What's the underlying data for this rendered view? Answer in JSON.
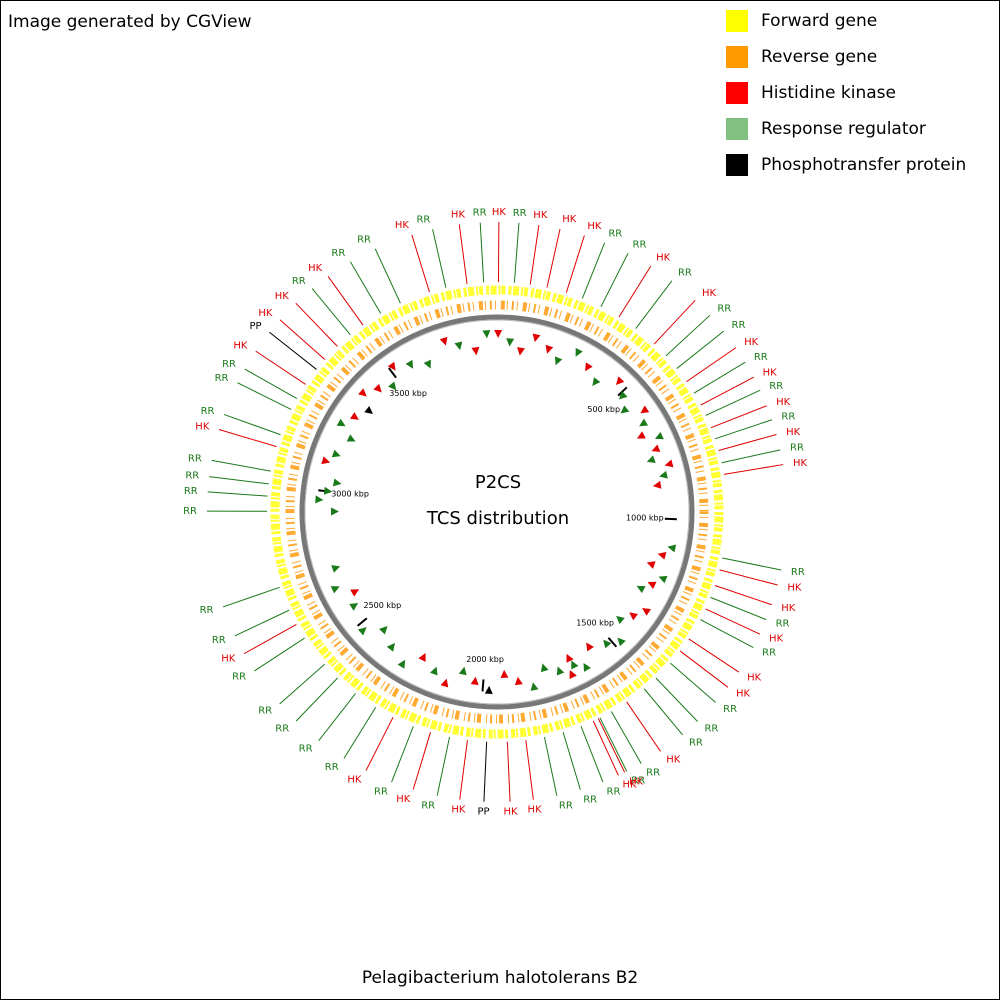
{
  "header": {
    "credit": "Image generated by CGView"
  },
  "legend": {
    "items": [
      {
        "label": "Forward gene",
        "color": "#ffff00"
      },
      {
        "label": "Reverse gene",
        "color": "#ff9900"
      },
      {
        "label": "Histidine kinase",
        "color": "#ff0000"
      },
      {
        "label": "Response regulator",
        "color": "#80c080"
      },
      {
        "label": "Phosphotransfer protein",
        "color": "#000000"
      }
    ]
  },
  "map": {
    "title": "P2CS",
    "subtitle": "TCS distribution",
    "genome_length_kbp": 3900,
    "label_colors": {
      "HK": "#e00000",
      "RR": "#1a7a1a",
      "PP": "#000000"
    },
    "ruler": {
      "ticks": [
        {
          "value": 500,
          "label": "500 kbp"
        },
        {
          "value": 1000,
          "label": "1000 kbp"
        },
        {
          "value": 1500,
          "label": "1500 kbp"
        },
        {
          "value": 2000,
          "label": "2000 kbp"
        },
        {
          "value": 2500,
          "label": "2500 kbp"
        },
        {
          "value": 3000,
          "label": "3000 kbp"
        },
        {
          "value": 3500,
          "label": "3500 kbp"
        }
      ]
    },
    "features": [
      {
        "label": "HK",
        "position": 4
      },
      {
        "label": "RR",
        "position": 47
      },
      {
        "label": "HK",
        "position": 90
      },
      {
        "label": "HK",
        "position": 136
      },
      {
        "label": "HK",
        "position": 190
      },
      {
        "label": "RR",
        "position": 236
      },
      {
        "label": "RR",
        "position": 291
      },
      {
        "label": "HK",
        "position": 347
      },
      {
        "label": "RR",
        "position": 402
      },
      {
        "label": "HK",
        "position": 467
      },
      {
        "label": "RR",
        "position": 512
      },
      {
        "label": "RR",
        "position": 557
      },
      {
        "label": "HK",
        "position": 601
      },
      {
        "label": "RR",
        "position": 638
      },
      {
        "label": "HK",
        "position": 675
      },
      {
        "label": "RR",
        "position": 706
      },
      {
        "label": "HK",
        "position": 742
      },
      {
        "label": "RR",
        "position": 774
      },
      {
        "label": "HK",
        "position": 807
      },
      {
        "label": "RR",
        "position": 841
      },
      {
        "label": "HK",
        "position": 873
      },
      {
        "label": "RR",
        "position": 1100
      },
      {
        "label": "HK",
        "position": 1133
      },
      {
        "label": "HK",
        "position": 1177
      },
      {
        "label": "RR",
        "position": 1211
      },
      {
        "label": "HK",
        "position": 1245
      },
      {
        "label": "RR",
        "position": 1277
      },
      {
        "label": "HK",
        "position": 1338
      },
      {
        "label": "HK",
        "position": 1378
      },
      {
        "label": "RR",
        "position": 1420
      },
      {
        "label": "RR",
        "position": 1476
      },
      {
        "label": "RR",
        "position": 1519
      },
      {
        "label": "HK",
        "position": 1578
      },
      {
        "label": "RR",
        "position": 1627
      },
      {
        "label": "RR",
        "position": 1662
      },
      {
        "label": "HK",
        "position": 1667
      },
      {
        "label": "HK",
        "position": 1682
      },
      {
        "label": "RR",
        "position": 1718
      },
      {
        "label": "RR",
        "position": 1769
      },
      {
        "label": "RR",
        "position": 1821
      },
      {
        "label": "HK",
        "position": 1872
      },
      {
        "label": "HK",
        "position": 1922
      },
      {
        "label": "PP",
        "position": 1978
      },
      {
        "label": "HK",
        "position": 2030
      },
      {
        "label": "RR",
        "position": 2079
      },
      {
        "label": "HK",
        "position": 2132
      },
      {
        "label": "RR",
        "position": 2181
      },
      {
        "label": "HK",
        "position": 2241
      },
      {
        "label": "RR",
        "position": 2295
      },
      {
        "label": "RR",
        "position": 2361
      },
      {
        "label": "RR",
        "position": 2425
      },
      {
        "label": "RR",
        "position": 2476
      },
      {
        "label": "RR",
        "position": 2565
      },
      {
        "label": "HK",
        "position": 2608
      },
      {
        "label": "RR",
        "position": 2651
      },
      {
        "label": "RR",
        "position": 2718
      },
      {
        "label": "RR",
        "position": 2927
      },
      {
        "label": "RR",
        "position": 2968
      },
      {
        "label": "RR",
        "position": 3001
      },
      {
        "label": "RR",
        "position": 3036
      },
      {
        "label": "HK",
        "position": 3104
      },
      {
        "label": "RR",
        "position": 3138
      },
      {
        "label": "RR",
        "position": 3212
      },
      {
        "label": "RR",
        "position": 3245
      },
      {
        "label": "HK",
        "position": 3290
      },
      {
        "label": "PP",
        "position": 3340
      },
      {
        "label": "HK",
        "position": 3375
      },
      {
        "label": "HK",
        "position": 3424
      },
      {
        "label": "RR",
        "position": 3471
      },
      {
        "label": "HK",
        "position": 3514
      },
      {
        "label": "RR",
        "position": 3571
      },
      {
        "label": "RR",
        "position": 3631
      },
      {
        "label": "HK",
        "position": 3715
      },
      {
        "label": "RR",
        "position": 3761
      },
      {
        "label": "HK",
        "position": 3819
      },
      {
        "label": "RR",
        "position": 3864
      }
    ]
  },
  "footer": {
    "organism": "Pelagibacterium halotolerans B2"
  }
}
